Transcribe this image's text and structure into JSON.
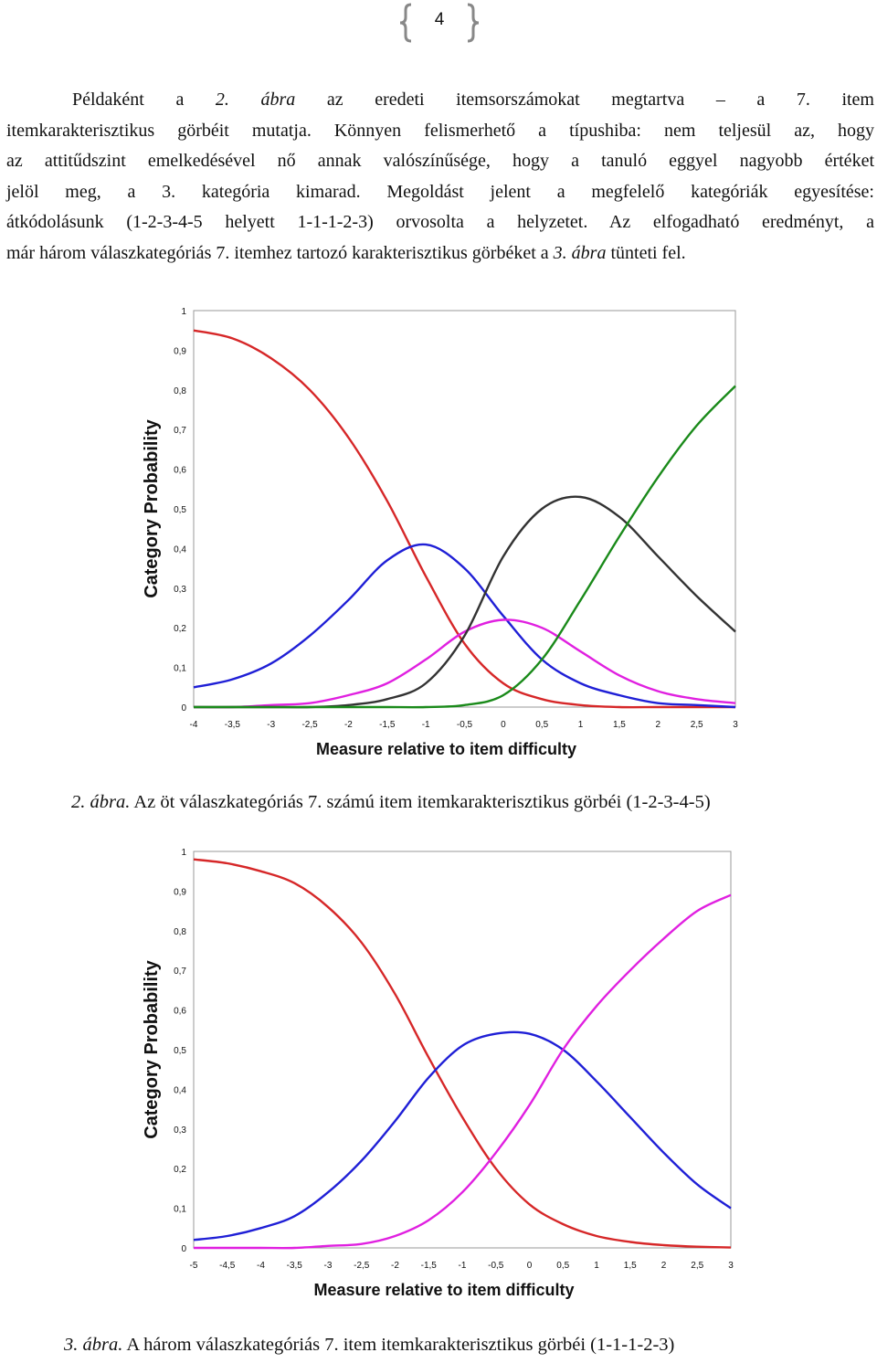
{
  "header": {
    "page_number": "4"
  },
  "paragraph": {
    "lines": [
      [
        "Példaként a ",
        "2. ábra",
        " az eredeti itemsorszámokat megtartva – a 7. item"
      ],
      [
        "itemkarakterisztikus görbéit mutatja. Könnyen felismerhető a típushiba: nem teljesül az, hogy"
      ],
      [
        "az attitűdszint emelkedésével nő annak valószínűsége, hogy a tanuló eggyel nagyobb értéket"
      ],
      [
        "jelöl meg, a 3. kategória kimarad. Megoldást jelent a megfelelő kategóriák egyesítése:"
      ],
      [
        "átkódolásunk (1-2-3-4-5 helyett 1-1-1-2-3) orvosolta a helyzetet. Az elfogadható eredményt, a"
      ],
      [
        "már három válaszkategóriás 7. itemhez tartozó karakterisztikus görbéket a ",
        "3. ábra",
        " tünteti fel."
      ]
    ]
  },
  "figure2": {
    "caption_italic": "2. ábra.",
    "caption_text": " Az öt válaszkategóriás  7. számú item itemkarakterisztikus görbéi (1-2-3-4-5)"
  },
  "figure3": {
    "caption_italic": "3. ábra.",
    "caption_text": " A három válaszkategóriás 7. item itemkarakterisztikus görbéi (1-1-1-2-3)"
  },
  "chart_data": [
    {
      "type": "line",
      "xlabel": "Measure relative to item difficulty",
      "ylabel": "Category Probability",
      "xlim": [
        -4,
        3
      ],
      "ylim": [
        0,
        1
      ],
      "x_ticks": [
        "-4",
        "-3,5",
        "-3",
        "-2,5",
        "-2",
        "-1,5",
        "-1",
        "-0,5",
        "0",
        "0,5",
        "1",
        "1,5",
        "2",
        "2,5",
        "3"
      ],
      "y_ticks": [
        "0",
        "0,1",
        "0,2",
        "0,3",
        "0,4",
        "0,5",
        "0,6",
        "0,7",
        "0,8",
        "0,9",
        "1"
      ],
      "grid": false,
      "series": [
        {
          "color": "#d62728",
          "x": [
            -4,
            -3.5,
            -3,
            -2.5,
            -2,
            -1.5,
            -1,
            -0.5,
            0,
            0.5,
            1,
            1.5,
            2,
            2.5,
            3
          ],
          "y": [
            0.95,
            0.93,
            0.88,
            0.8,
            0.68,
            0.52,
            0.33,
            0.16,
            0.06,
            0.02,
            0.005,
            0.0,
            0.0,
            0.0,
            0.0
          ]
        },
        {
          "color": "#1f1fd6",
          "x": [
            -4,
            -3.5,
            -3,
            -2.5,
            -2,
            -1.5,
            -1,
            -0.5,
            0,
            0.5,
            1,
            1.5,
            2,
            2.5,
            3
          ],
          "y": [
            0.05,
            0.07,
            0.11,
            0.18,
            0.27,
            0.37,
            0.41,
            0.35,
            0.23,
            0.12,
            0.06,
            0.03,
            0.01,
            0.005,
            0.0
          ]
        },
        {
          "color": "#e020e0",
          "x": [
            -4,
            -3.5,
            -3,
            -2.5,
            -2,
            -1.5,
            -1,
            -0.5,
            0,
            0.5,
            1,
            1.5,
            2,
            2.5,
            3
          ],
          "y": [
            0.0,
            0.0,
            0.005,
            0.01,
            0.03,
            0.06,
            0.12,
            0.19,
            0.22,
            0.2,
            0.14,
            0.08,
            0.04,
            0.02,
            0.01
          ]
        },
        {
          "color": "#333333",
          "x": [
            -4,
            -3.5,
            -3,
            -2.5,
            -2,
            -1.5,
            -1,
            -0.5,
            0,
            0.5,
            1,
            1.5,
            2,
            2.5,
            3
          ],
          "y": [
            0.0,
            0.0,
            0.0,
            0.0,
            0.005,
            0.02,
            0.06,
            0.18,
            0.38,
            0.5,
            0.53,
            0.48,
            0.38,
            0.28,
            0.19
          ]
        },
        {
          "color": "#1a8a1a",
          "x": [
            -4,
            -3.5,
            -3,
            -2.5,
            -2,
            -1.5,
            -1,
            -0.5,
            0,
            0.5,
            1,
            1.5,
            2,
            2.5,
            3
          ],
          "y": [
            0.0,
            0.0,
            0.0,
            0.0,
            0.0,
            0.0,
            0.0,
            0.005,
            0.03,
            0.12,
            0.27,
            0.43,
            0.58,
            0.71,
            0.81
          ]
        }
      ]
    },
    {
      "type": "line",
      "xlabel": "Measure relative to item difficulty",
      "ylabel": "Category Probability",
      "xlim": [
        -5,
        3
      ],
      "ylim": [
        0,
        1
      ],
      "x_ticks": [
        "-5",
        "-4,5",
        "-4",
        "-3,5",
        "-3",
        "-2,5",
        "-2",
        "-1,5",
        "-1",
        "-0,5",
        "0",
        "0,5",
        "1",
        "1,5",
        "2",
        "2,5",
        "3"
      ],
      "y_ticks": [
        "0",
        "0,1",
        "0,2",
        "0,3",
        "0,4",
        "0,5",
        "0,6",
        "0,7",
        "0,8",
        "0,9",
        "1"
      ],
      "grid": false,
      "series": [
        {
          "color": "#d62728",
          "x": [
            -5,
            -4.5,
            -4,
            -3.5,
            -3,
            -2.5,
            -2,
            -1.5,
            -1,
            -0.5,
            0,
            0.5,
            1,
            1.5,
            2,
            2.5,
            3
          ],
          "y": [
            0.98,
            0.97,
            0.95,
            0.92,
            0.86,
            0.77,
            0.64,
            0.48,
            0.33,
            0.2,
            0.11,
            0.06,
            0.03,
            0.015,
            0.007,
            0.003,
            0.001
          ]
        },
        {
          "color": "#1f1fd6",
          "x": [
            -5,
            -4.5,
            -4,
            -3.5,
            -3,
            -2.5,
            -2,
            -1.5,
            -1,
            -0.5,
            0,
            0.5,
            1,
            1.5,
            2,
            2.5,
            3
          ],
          "y": [
            0.02,
            0.03,
            0.05,
            0.08,
            0.14,
            0.22,
            0.32,
            0.43,
            0.51,
            0.54,
            0.54,
            0.5,
            0.42,
            0.33,
            0.24,
            0.16,
            0.1
          ]
        },
        {
          "color": "#e020e0",
          "x": [
            -5,
            -4.5,
            -4,
            -3.5,
            -3,
            -2.5,
            -2,
            -1.5,
            -1,
            -0.5,
            0,
            0.5,
            1,
            1.5,
            2,
            2.5,
            3
          ],
          "y": [
            0.0,
            0.0,
            0.0,
            0.0,
            0.005,
            0.01,
            0.03,
            0.07,
            0.14,
            0.24,
            0.36,
            0.5,
            0.61,
            0.7,
            0.78,
            0.85,
            0.89
          ]
        }
      ]
    }
  ]
}
